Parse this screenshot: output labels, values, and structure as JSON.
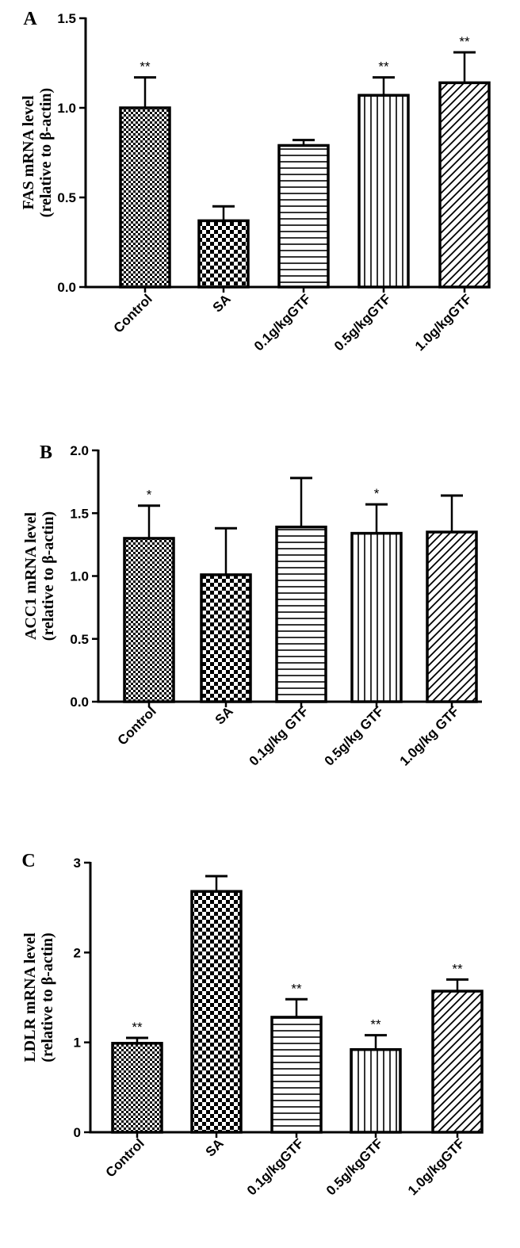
{
  "chart_data": [
    {
      "type": "bar",
      "panel": "A",
      "ylabel_line1": "FAS mRNA level",
      "ylabel_line2": "(relative to β-actin)",
      "ylim": [
        0,
        1.5
      ],
      "yticks": [
        "0.0",
        "0.5",
        "1.0",
        "1.5"
      ],
      "categories": [
        "Control",
        "SA",
        "0.1g/kgGTF",
        "0.5g/kgGTF",
        "1.0g/kgGTF"
      ],
      "values": [
        1.0,
        0.37,
        0.79,
        1.07,
        1.14
      ],
      "errors": [
        0.17,
        0.08,
        0.03,
        0.1,
        0.17
      ],
      "significance": [
        "**",
        "",
        "",
        "**",
        "**"
      ]
    },
    {
      "type": "bar",
      "panel": "B",
      "ylabel_line1": "ACC1 mRNA level",
      "ylabel_line2": "(relative to β-actin)",
      "ylim": [
        0,
        2.0
      ],
      "yticks": [
        "0.0",
        "0.5",
        "1.0",
        "1.5",
        "2.0"
      ],
      "categories": [
        "Control",
        "SA",
        "0.1g/kg GTF",
        "0.5g/kg GTF",
        "1.0g/kg GTF"
      ],
      "values": [
        1.3,
        1.01,
        1.39,
        1.34,
        1.35
      ],
      "errors": [
        0.26,
        0.37,
        0.39,
        0.23,
        0.29
      ],
      "significance": [
        "*",
        "",
        "",
        "*",
        ""
      ]
    },
    {
      "type": "bar",
      "panel": "C",
      "ylabel_line1": "LDLR mRNA level",
      "ylabel_line2": "(relative to β-actin)",
      "ylim": [
        0,
        3
      ],
      "yticks": [
        "0",
        "1",
        "2",
        "3"
      ],
      "categories": [
        "Control",
        "SA",
        "0.1g/kgGTF",
        "0.5g/kgGTF",
        "1.0g/kgGTF"
      ],
      "values": [
        0.99,
        2.68,
        1.28,
        0.92,
        1.57
      ],
      "errors": [
        0.06,
        0.17,
        0.2,
        0.16,
        0.13
      ],
      "significance": [
        "**",
        "",
        "**",
        "**",
        "**"
      ]
    }
  ]
}
